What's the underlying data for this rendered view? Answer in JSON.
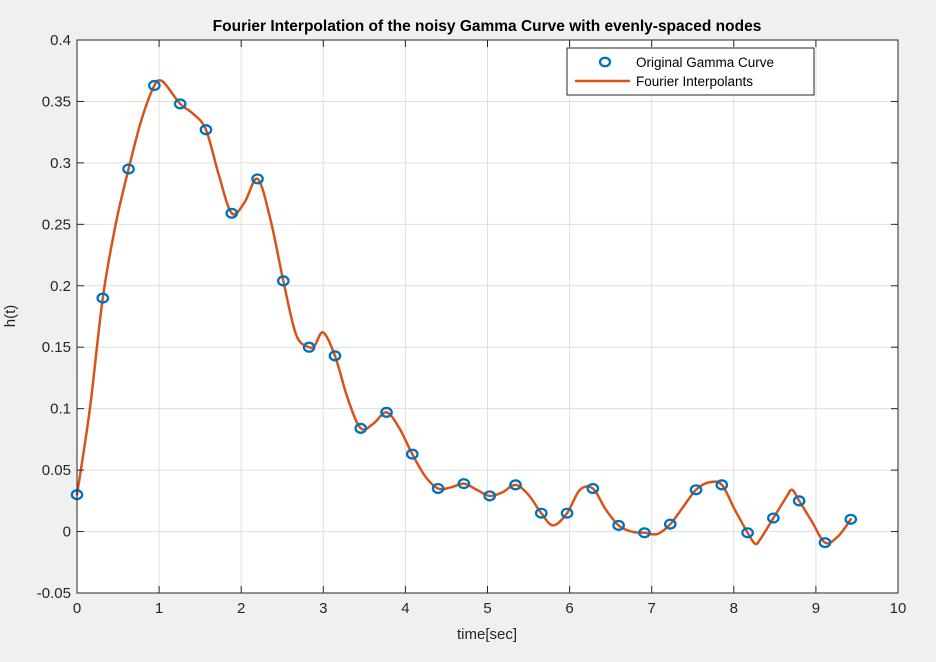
{
  "chart_data": {
    "type": "line",
    "title": "Fourier Interpolation of the noisy Gamma Curve with evenly-spaced nodes",
    "xlabel": "time[sec]",
    "ylabel": "h(t)",
    "xlim": [
      0,
      10
    ],
    "ylim": [
      -0.05,
      0.4
    ],
    "xticks": [
      0,
      1,
      2,
      3,
      4,
      5,
      6,
      7,
      8,
      9,
      10
    ],
    "xtick_labels": [
      "0",
      "1",
      "2",
      "3",
      "4",
      "5",
      "6",
      "7",
      "8",
      "9",
      "10"
    ],
    "yticks": [
      -0.05,
      0,
      0.05,
      0.1,
      0.15,
      0.2,
      0.25,
      0.3,
      0.35,
      0.4
    ],
    "ytick_labels": [
      "-0.05",
      "0",
      "0.05",
      "0.1",
      "0.15",
      "0.2",
      "0.25",
      "0.3",
      "0.35",
      "0.4"
    ],
    "grid": true,
    "legend_position": "top-right",
    "series": [
      {
        "name": "Original Gamma Curve",
        "kind": "markers",
        "marker": "circle",
        "color": "#0072BD",
        "x": [
          0,
          0.314,
          0.628,
          0.942,
          1.257,
          1.571,
          1.885,
          2.199,
          2.513,
          2.827,
          3.142,
          3.456,
          3.77,
          4.084,
          4.398,
          4.712,
          5.027,
          5.341,
          5.655,
          5.969,
          6.283,
          6.597,
          6.912,
          7.226,
          7.54,
          7.854,
          8.168,
          8.482,
          8.796,
          9.111,
          9.425
        ],
        "y": [
          0.03,
          0.19,
          0.295,
          0.363,
          0.348,
          0.327,
          0.259,
          0.287,
          0.204,
          0.15,
          0.143,
          0.084,
          0.097,
          0.063,
          0.035,
          0.039,
          0.029,
          0.038,
          0.015,
          0.015,
          0.035,
          0.005,
          -0.001,
          0.006,
          0.034,
          0.038,
          -0.001,
          0.011,
          0.025,
          -0.009,
          0.01
        ]
      },
      {
        "name": "Fourier Interpolants",
        "kind": "line",
        "color": "#D95319",
        "x": [
          0,
          0.157,
          0.314,
          0.471,
          0.628,
          0.785,
          0.942,
          1.02,
          1.1,
          1.257,
          1.414,
          1.571,
          1.728,
          1.885,
          2.042,
          2.199,
          2.356,
          2.513,
          2.67,
          2.827,
          2.9,
          3.0,
          3.142,
          3.299,
          3.456,
          3.613,
          3.77,
          3.927,
          4.084,
          4.241,
          4.398,
          4.555,
          4.712,
          4.869,
          5.027,
          5.184,
          5.341,
          5.498,
          5.655,
          5.8,
          5.969,
          6.126,
          6.283,
          6.44,
          6.597,
          6.754,
          6.912,
          7.069,
          7.226,
          7.383,
          7.54,
          7.697,
          7.854,
          8.011,
          8.168,
          8.26,
          8.325,
          8.482,
          8.639,
          8.71,
          8.796,
          8.953,
          9.111,
          9.268,
          9.425
        ],
        "y": [
          0.03,
          0.1,
          0.19,
          0.25,
          0.295,
          0.335,
          0.363,
          0.367,
          0.362,
          0.348,
          0.34,
          0.327,
          0.29,
          0.259,
          0.268,
          0.287,
          0.254,
          0.204,
          0.16,
          0.15,
          0.152,
          0.162,
          0.143,
          0.108,
          0.084,
          0.088,
          0.097,
          0.084,
          0.063,
          0.045,
          0.035,
          0.036,
          0.039,
          0.034,
          0.029,
          0.032,
          0.038,
          0.03,
          0.015,
          0.005,
          0.015,
          0.034,
          0.035,
          0.018,
          0.005,
          0.0,
          -0.001,
          -0.002,
          0.006,
          0.02,
          0.034,
          0.04,
          0.038,
          0.018,
          -0.001,
          -0.01,
          -0.006,
          0.011,
          0.028,
          0.034,
          0.025,
          0.008,
          -0.009,
          -0.004,
          0.01
        ]
      }
    ]
  }
}
